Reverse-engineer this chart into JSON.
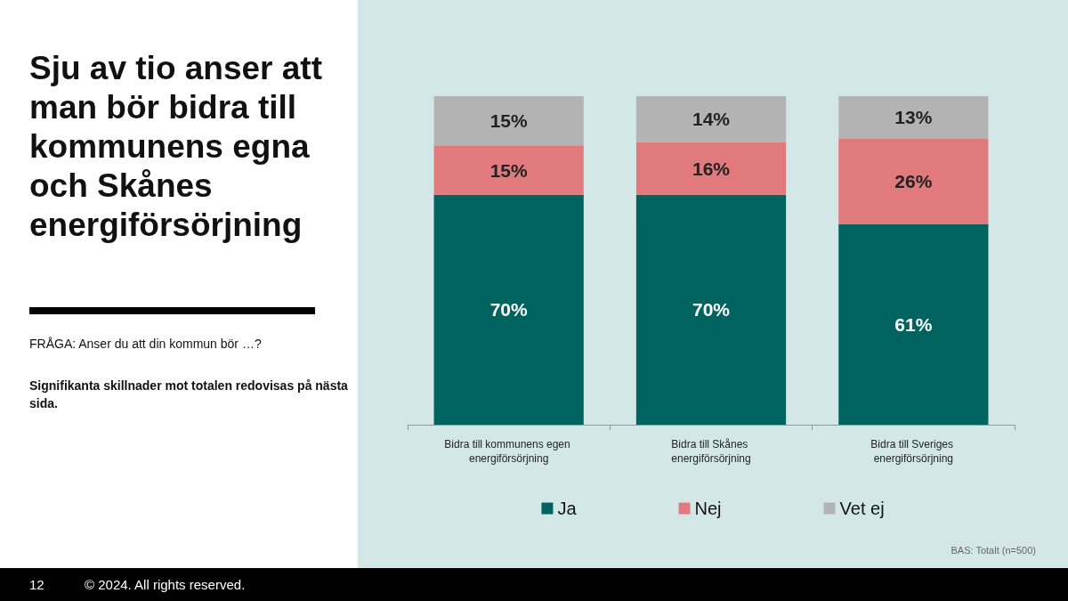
{
  "chart_data": {
    "type": "bar",
    "stacked": true,
    "title": "Sju av tio anser att man bör bidra till kommunens egna och Skånes energiförsörjning",
    "subtitle": "FRÅGA: Anser du att din kommun bör …?",
    "annotations": [
      "Signifikanta skillnader mot totalen redovisas på nästa sida.",
      "BAS: Totalt (n=500)",
      "12",
      "© 2024. All rights reserved."
    ],
    "categories": [
      "Bidra till kommunens egen energiförsörjning",
      "Bidra till Skånes energiförsörjning",
      "Bidra till Sveriges energiförsörjning"
    ],
    "series": [
      {
        "name": "Ja",
        "color": "#00635f",
        "values": [
          70,
          70,
          61
        ],
        "value_labels": [
          "70%",
          "70%",
          "61%"
        ]
      },
      {
        "name": "Nej",
        "color": "#e07a7d",
        "values": [
          15,
          16,
          26
        ],
        "value_labels": [
          "15%",
          "16%",
          "26%"
        ]
      },
      {
        "name": "Vet ej",
        "color": "#b3b3b3",
        "values": [
          15,
          14,
          13
        ],
        "value_labels": [
          "15%",
          "14%",
          "13%"
        ]
      }
    ],
    "grid": false,
    "legend": "bottom"
  }
}
